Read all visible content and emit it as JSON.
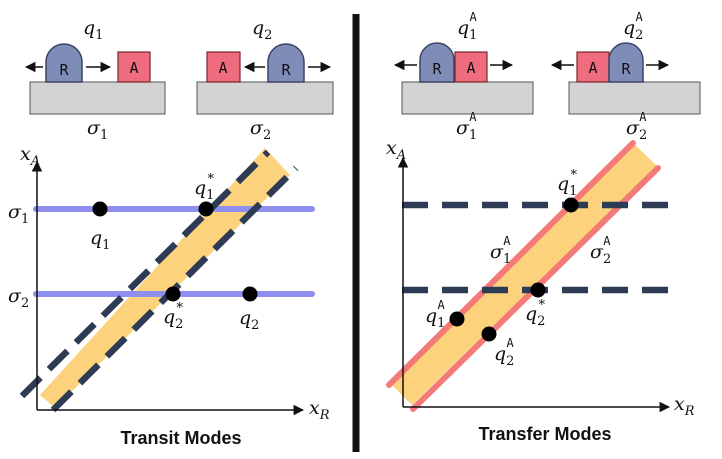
{
  "colors": {
    "robot": "#7f8cb8",
    "object": "#ef6b7e",
    "surface": "#d3d3d3",
    "mode_line": "#8f8fef",
    "band": "#fcd27c",
    "dashed": "#2e3b55",
    "transfer_edge": "#f47a78",
    "divider": "#111111"
  },
  "left": {
    "title": "Transit Modes",
    "robot_label": "R",
    "object_label": "A",
    "scene1": {
      "config": "q",
      "config_sub": "1",
      "surface": "σ",
      "surface_sub": "1"
    },
    "scene2": {
      "config": "q",
      "config_sub": "2",
      "surface": "σ",
      "surface_sub": "2"
    },
    "axes": {
      "y": "x",
      "y_sub": "A",
      "x": "x",
      "x_sub": "R"
    },
    "mode_labels": {
      "sigma1": "σ",
      "sigma1_sub": "1",
      "sigma2": "σ",
      "sigma2_sub": "2"
    },
    "points": {
      "q1": {
        "name": "q",
        "sub": "1"
      },
      "q1s": {
        "name": "q",
        "sub": "1",
        "sup": "*"
      },
      "q2s": {
        "name": "q",
        "sub": "2",
        "sup": "*"
      },
      "q2": {
        "name": "q",
        "sub": "2"
      }
    }
  },
  "right": {
    "title": "Transfer Modes",
    "robot_label": "R",
    "object_label": "A",
    "scene1": {
      "config": "q",
      "config_sub": "1",
      "config_sup": "A",
      "surface": "σ",
      "surface_sub": "1",
      "surface_sup": "A"
    },
    "scene2": {
      "config": "q",
      "config_sub": "2",
      "config_sup": "A",
      "surface": "σ",
      "surface_sub": "2",
      "surface_sup": "A"
    },
    "axes": {
      "y": "x",
      "y_sub": "A",
      "x": "x",
      "x_sub": "R"
    },
    "points": {
      "q1s": {
        "name": "q",
        "sub": "1",
        "sup": "*"
      },
      "sig1": {
        "name": "σ",
        "sub": "1",
        "sup": "A"
      },
      "sig2": {
        "name": "σ",
        "sub": "2",
        "sup": "A"
      },
      "q1a": {
        "name": "q",
        "sub": "1",
        "sup": "A"
      },
      "q2s": {
        "name": "q",
        "sub": "2",
        "sup": "*"
      },
      "q2a": {
        "name": "q",
        "sub": "2",
        "sup": "A"
      }
    }
  }
}
